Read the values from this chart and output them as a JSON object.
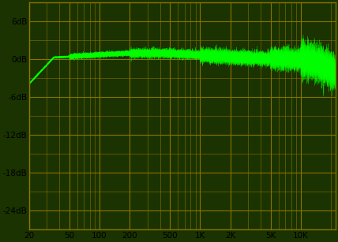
{
  "background_color": "#1a3300",
  "grid_color": "#8B7300",
  "line_color": "#00ff00",
  "fill_color": "#00ff00",
  "ylim": [
    -27,
    9
  ],
  "yticks": [
    6,
    0,
    -6,
    -12,
    -18,
    -24
  ],
  "ytick_labels": [
    "6dB",
    "0dB",
    "-6dB",
    "-12dB",
    "-18dB",
    "-24dB"
  ],
  "xmin": 20,
  "xmax": 22000,
  "xticks": [
    20,
    50,
    100,
    200,
    500,
    1000,
    2000,
    5000,
    10000
  ],
  "xtick_labels": [
    "20",
    "50",
    "100",
    "200",
    "500",
    "1K",
    "2K",
    "5K",
    "10K"
  ],
  "figsize": [
    4.28,
    3.07
  ],
  "dpi": 100,
  "tick_color": "#000000",
  "tick_fontsize": 7.5
}
